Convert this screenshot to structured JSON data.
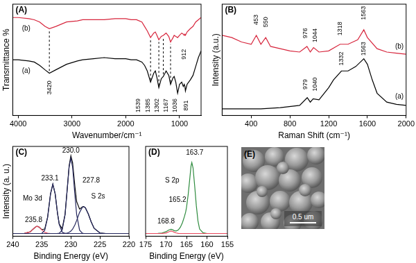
{
  "chart_data": [
    {
      "type": "line",
      "title": "(A)",
      "x_label": "Wavenumber/cm⁻¹",
      "y_label": "Transmittance %",
      "xlim": [
        4100,
        600
      ],
      "xticks": [
        4000,
        3000,
        2000,
        1000
      ],
      "ylim": [
        0,
        100
      ],
      "tick_labels": "x",
      "grid": false,
      "series": [
        {
          "color": "#000000",
          "x": [
            4100,
            4000,
            3800,
            3700,
            3600,
            3500,
            3420,
            3300,
            3100,
            2900,
            2800,
            2600,
            2400,
            2200,
            2000,
            1900,
            1800,
            1700,
            1650,
            1600,
            1539,
            1480,
            1450,
            1420,
            1385,
            1340,
            1302,
            1250,
            1200,
            1167,
            1120,
            1100,
            1070,
            1036,
            1000,
            960,
            930,
            912,
            900,
            891,
            860,
            800,
            750,
            700,
            650,
            600
          ],
          "values": [
            50,
            50,
            49,
            48,
            45,
            41,
            38,
            41,
            46,
            49,
            50,
            51,
            52,
            51,
            51,
            50,
            50,
            48,
            45,
            40,
            30,
            38,
            40,
            34,
            25,
            33,
            35,
            40,
            36,
            28,
            34,
            35,
            30,
            20,
            28,
            30,
            26,
            28,
            26,
            22,
            28,
            32,
            36,
            44,
            52,
            58
          ]
        },
        {
          "color": "#d7263d",
          "x": [
            4100,
            4000,
            3800,
            3700,
            3600,
            3500,
            3420,
            3300,
            3100,
            2900,
            2800,
            2600,
            2400,
            2200,
            2000,
            1900,
            1800,
            1700,
            1650,
            1600,
            1539,
            1480,
            1450,
            1420,
            1385,
            1340,
            1302,
            1250,
            1200,
            1167,
            1120,
            1100,
            1070,
            1036,
            1000,
            960,
            930,
            912,
            900,
            891,
            860,
            800,
            750,
            700,
            650,
            600
          ],
          "values": [
            88,
            88,
            87,
            86,
            84,
            80,
            78,
            80,
            84,
            85,
            86,
            86,
            86,
            87,
            87,
            86,
            86,
            84,
            80,
            76,
            70,
            74,
            75,
            72,
            68,
            71,
            72,
            74,
            71,
            66,
            70,
            72,
            71,
            70,
            72,
            74,
            73,
            72,
            73,
            72,
            75,
            78,
            80,
            84,
            86,
            88
          ]
        }
      ],
      "peak_lines": [
        {
          "x": 3420,
          "y": [
            40,
            76
          ]
        },
        {
          "x": 1539,
          "y": [
            32,
            68
          ]
        },
        {
          "x": 1385,
          "y": [
            27,
            66
          ]
        },
        {
          "x": 1302,
          "y": [
            37,
            70
          ]
        },
        {
          "x": 1167,
          "y": [
            30,
            64
          ]
        }
      ],
      "annotations": [
        {
          "text": "(a)",
          "x": 3850,
          "y": 40
        },
        {
          "text": "(b)",
          "x": 3850,
          "y": 78
        },
        {
          "text": "3420",
          "x": 3420,
          "y": 25
        },
        {
          "text": "1539",
          "x": 1760,
          "y": 9
        },
        {
          "text": "1385",
          "x": 1590,
          "y": 9
        },
        {
          "text": "1302",
          "x": 1420,
          "y": 9
        },
        {
          "text": "1167",
          "x": 1250,
          "y": 9
        },
        {
          "text": "1036",
          "x": 1080,
          "y": 9
        },
        {
          "text": "912",
          "x": 912,
          "y": 55
        },
        {
          "text": "891",
          "x": 880,
          "y": 9
        }
      ]
    },
    {
      "type": "line",
      "title": "(B)",
      "x_label": "Raman Shift (cm⁻¹)",
      "y_label": "Intensity (a.u.)",
      "xlim": [
        100,
        2000
      ],
      "xticks": [
        400,
        800,
        1200,
        1600,
        2000
      ],
      "ylim": [
        0,
        100
      ],
      "tick_labels": "x",
      "grid": false,
      "series": [
        {
          "color": "#000000",
          "x": [
            100,
            300,
            500,
            700,
            900,
            979,
            1010,
            1040,
            1100,
            1200,
            1250,
            1332,
            1400,
            1480,
            1563,
            1600,
            1650,
            1700,
            1800,
            1900,
            2000
          ],
          "values": [
            6,
            6,
            6,
            7,
            9,
            16,
            12,
            15,
            14,
            25,
            32,
            40,
            40,
            44,
            51,
            46,
            32,
            20,
            12,
            10,
            9
          ]
        },
        {
          "color": "#d7263d",
          "x": [
            100,
            200,
            300,
            400,
            453,
            500,
            550,
            600,
            700,
            800,
            900,
            976,
            1010,
            1044,
            1100,
            1200,
            1318,
            1400,
            1500,
            1563,
            1600,
            1700,
            1800,
            1900,
            2000
          ],
          "values": [
            72,
            70,
            66,
            64,
            72,
            64,
            70,
            62,
            60,
            58,
            57,
            62,
            57,
            61,
            57,
            58,
            64,
            64,
            68,
            77,
            70,
            60,
            57,
            56,
            55
          ]
        }
      ],
      "annotations": [
        {
          "text": "453",
          "x": 453,
          "y": 86
        },
        {
          "text": "550",
          "x": 550,
          "y": 84
        },
        {
          "text": "976",
          "x": 960,
          "y": 74
        },
        {
          "text": "1044",
          "x": 1060,
          "y": 72
        },
        {
          "text": "1318",
          "x": 1318,
          "y": 78
        },
        {
          "text": "1563",
          "x": 1563,
          "y": 92
        },
        {
          "text": "979",
          "x": 960,
          "y": 28
        },
        {
          "text": "1040",
          "x": 1060,
          "y": 28
        },
        {
          "text": "1332",
          "x": 1332,
          "y": 51
        },
        {
          "text": "1563",
          "x": 1563,
          "y": 60
        },
        {
          "text": "(b)",
          "x": 1930,
          "y": 62
        },
        {
          "text": "(a)",
          "x": 1930,
          "y": 17
        }
      ]
    },
    {
      "type": "line",
      "title": "(C)",
      "x_label": "Binding Energy (eV)",
      "y_label": "Intensity (a. u.)",
      "xlim": [
        240,
        220
      ],
      "xticks": [
        240,
        235,
        230,
        225,
        220
      ],
      "ylim": [
        0,
        100
      ],
      "tick_labels": "x",
      "grid": false,
      "series": [
        {
          "color": "#26285e",
          "x": [
            240,
            239,
            238,
            237,
            236.5,
            236,
            235.8,
            235.5,
            235,
            234.5,
            234,
            233.5,
            233.1,
            232.7,
            232.3,
            232,
            231.5,
            231,
            230.6,
            230.3,
            230,
            229.7,
            229.3,
            229,
            228.5,
            228,
            227.8,
            227.5,
            227,
            226.5,
            226,
            225,
            224,
            223,
            222,
            221,
            220
          ],
          "values": [
            3,
            3,
            3,
            3,
            3,
            3,
            3,
            3,
            3.2,
            6.6,
            20.9,
            47.2,
            58,
            47.2,
            25.6,
            13.2,
            4.6,
            3.1,
            3,
            3,
            3,
            3,
            3,
            3,
            3,
            3,
            3,
            3,
            3,
            3,
            3,
            3,
            3,
            3,
            3,
            3,
            3
          ]
        },
        {
          "color": "#26285e",
          "x": [
            240,
            239,
            238,
            237,
            236.5,
            236,
            235.8,
            235.5,
            235,
            234.5,
            234,
            233.5,
            233.1,
            232.7,
            232.3,
            232,
            231.5,
            231,
            230.6,
            230.3,
            230,
            229.7,
            229.3,
            229,
            228.5,
            228,
            227.8,
            227.5,
            227,
            226.5,
            226,
            225,
            224,
            223,
            222,
            221,
            220
          ],
          "values": [
            3,
            3,
            3,
            3,
            3,
            3,
            3,
            3,
            3,
            3,
            3,
            3,
            3,
            3,
            3.1,
            3.3,
            6.7,
            23.9,
            54,
            77,
            87,
            77,
            45.6,
            23.9,
            6.7,
            3.3,
            3.1,
            3,
            3,
            3,
            3,
            3,
            3,
            3,
            3,
            3,
            3
          ]
        },
        {
          "color": "#26285e",
          "x": [
            240,
            239,
            238,
            237,
            236.5,
            236,
            235.8,
            235.5,
            235,
            234.5,
            234,
            233.5,
            233.1,
            232.7,
            232.3,
            232,
            231.5,
            231,
            230.6,
            230.3,
            230,
            229.7,
            229.3,
            229,
            228.5,
            228,
            227.8,
            227.5,
            227,
            226.5,
            226,
            225,
            224,
            223,
            222,
            221,
            220
          ],
          "values": [
            3,
            3,
            3,
            3,
            3,
            3,
            3,
            3,
            3,
            3,
            3,
            3,
            3,
            3,
            3,
            3,
            3,
            3.2,
            3.6,
            4.3,
            5.7,
            7.9,
            12.7,
            17.6,
            26.5,
            32.4,
            33,
            31.7,
            24.8,
            15.9,
            8.9,
            3.6,
            3,
            3,
            3,
            3,
            3
          ]
        },
        {
          "color": "#e8485c",
          "x": [
            240,
            239,
            238,
            237,
            236.5,
            236,
            235.8,
            235.5,
            235,
            234.5,
            234,
            233.5,
            233.1,
            232.7,
            232.3,
            232,
            231.5,
            231,
            230.6,
            230.3,
            230,
            229.7,
            229.3,
            229,
            228.5,
            228,
            227.8,
            227.5,
            227,
            226.5,
            226,
            225,
            224,
            223,
            222,
            221,
            220
          ],
          "values": [
            3,
            3,
            3.1,
            4.8,
            7.9,
            10.7,
            11,
            10.3,
            7.2,
            4.4,
            3.3,
            3,
            3,
            3,
            3,
            3,
            3,
            3,
            3,
            3,
            3,
            3,
            3,
            3,
            3,
            3,
            3,
            3,
            3,
            3,
            3,
            3,
            3,
            3,
            3,
            3,
            3
          ]
        },
        {
          "color": "#111111",
          "x": [
            240,
            239,
            238,
            237,
            236.5,
            236,
            235.8,
            235.5,
            235,
            234.5,
            234,
            233.5,
            233.1,
            232.7,
            232.3,
            232,
            231.5,
            231,
            230.6,
            230.3,
            230,
            229.7,
            229.3,
            229,
            228.5,
            228,
            227.8,
            227.5,
            227,
            226.5,
            226,
            225,
            224,
            223,
            222,
            221,
            220
          ],
          "values": [
            3,
            3,
            3.1,
            4.8,
            7.9,
            10.7,
            11,
            10.3,
            7.4,
            8,
            21.2,
            47.2,
            58,
            47.2,
            25.7,
            13.5,
            8.3,
            24.2,
            54.6,
            78.3,
            89.7,
            81.9,
            55.3,
            38.5,
            30.2,
            32.7,
            33.1,
            31.7,
            24.8,
            15.9,
            8.9,
            3.6,
            3,
            3,
            3,
            3,
            3
          ]
        }
      ],
      "annotations": [
        {
          "text": "235.8",
          "x": 236.4,
          "y": 18
        },
        {
          "text": "Mo 3d",
          "x": 236.6,
          "y": 42
        },
        {
          "text": "233.1",
          "x": 233.6,
          "y": 64
        },
        {
          "text": "230.0",
          "x": 230.0,
          "y": 95
        },
        {
          "text": "227.8",
          "x": 226.5,
          "y": 62
        },
        {
          "text": "S 2s",
          "x": 225.3,
          "y": 44
        }
      ]
    },
    {
      "type": "line",
      "title": "(D)",
      "x_label": "Binding Energy (eV)",
      "xlim": [
        175,
        155
      ],
      "xticks": [
        175,
        170,
        165,
        160,
        155
      ],
      "ylim": [
        0,
        100
      ],
      "tick_labels": "x",
      "grid": false,
      "series": [
        {
          "color": "#e8485c",
          "x": [
            175,
            174,
            173,
            172,
            171,
            170,
            169.5,
            169,
            168.8,
            168.5,
            168,
            167.5,
            167,
            166.5,
            166,
            165.5,
            165.2,
            165,
            164.6,
            164.2,
            163.9,
            163.7,
            163.4,
            163,
            162.6,
            162.2,
            161.8,
            161,
            160,
            159,
            158,
            157,
            156,
            155
          ],
          "values": [
            3,
            3,
            3,
            3,
            3.1,
            3.5,
            4.6,
            5.5,
            5.8,
            5.5,
            4.5,
            3.6,
            3.1,
            3,
            3,
            3,
            3,
            3,
            3,
            3,
            3,
            3,
            3,
            3,
            3,
            3,
            3,
            3,
            3,
            3,
            3,
            3,
            3,
            3
          ]
        },
        {
          "color": "#2e8b3e",
          "x": [
            175,
            174,
            173,
            172,
            171,
            170,
            169.5,
            169,
            168.8,
            168.5,
            168,
            167.5,
            167,
            166.5,
            166,
            165.5,
            165.2,
            165,
            164.6,
            164.2,
            163.9,
            163.7,
            163.4,
            163,
            162.6,
            162.2,
            161.8,
            161,
            160,
            159,
            158,
            157,
            156,
            155
          ],
          "values": [
            3,
            3,
            3,
            3.2,
            3.6,
            5,
            6.5,
            7.5,
            7.8,
            7.4,
            6.2,
            5.8,
            7,
            10,
            15,
            22,
            27,
            32,
            46,
            64,
            78,
            82,
            76,
            56,
            34,
            17,
            8,
            4,
            3,
            3,
            3,
            3,
            3,
            3
          ]
        }
      ],
      "annotations": [
        {
          "text": "163.7",
          "x": 163.0,
          "y": 93
        },
        {
          "text": "S 2p",
          "x": 168.5,
          "y": 62
        },
        {
          "text": "165.2",
          "x": 167.2,
          "y": 40
        },
        {
          "text": "168.8",
          "x": 170.0,
          "y": 16
        }
      ]
    }
  ],
  "image_panel": {
    "label": "(E)",
    "scale_bar": "0.5 um"
  }
}
